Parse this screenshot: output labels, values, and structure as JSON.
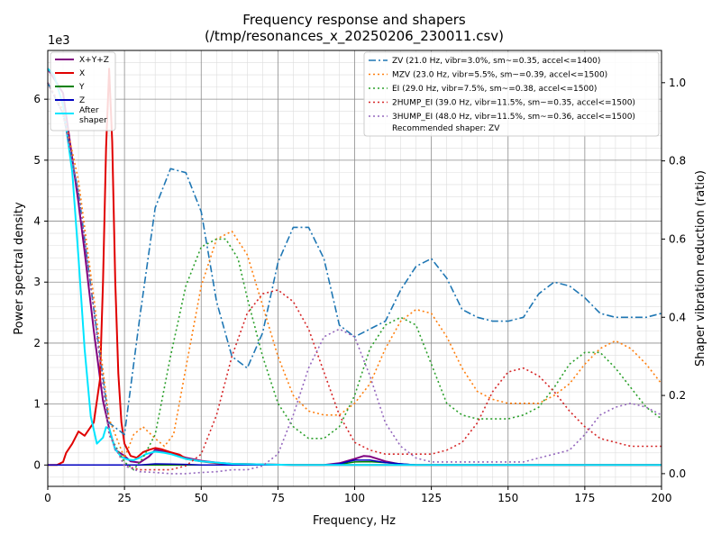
{
  "chart_data": {
    "type": "line",
    "title": "Frequency response and shapers",
    "subtitle": "(/tmp/resonances_x_20250206_230011.csv)",
    "xlabel": "Frequency, Hz",
    "ylabel": "Power spectral density",
    "y2label": "Shaper vibration reduction (ratio)",
    "y_multiplier_label": "1e3",
    "xlim": [
      0,
      200
    ],
    "ylim": [
      -350,
      6800
    ],
    "y2lim": [
      -0.0325,
      1.0825
    ],
    "x_ticks": [
      0,
      25,
      50,
      75,
      100,
      125,
      150,
      175,
      200
    ],
    "y_ticks": [
      0,
      1000,
      2000,
      3000,
      4000,
      5000,
      6000
    ],
    "y_tick_labels": [
      "0",
      "1",
      "2",
      "3",
      "4",
      "5",
      "6"
    ],
    "y2_ticks": [
      0.0,
      0.2,
      0.4,
      0.6,
      0.8,
      1.0
    ],
    "y2_tick_labels": [
      "0.0",
      "0.2",
      "0.4",
      "0.6",
      "0.8",
      "1.0"
    ],
    "grid": true,
    "recommended_text": "Recommended shaper: ZV",
    "legend_left": {
      "placement": "top-left",
      "entries": [
        "X+Y+Z",
        "X",
        "Y",
        "Z",
        "After shaper"
      ]
    },
    "legend_right": {
      "placement": "top-right",
      "entries": [
        "ZV (21.0 Hz, vibr=3.0%, sm~=0.35, accel<=1400)",
        "MZV (23.0 Hz, vibr=5.5%, sm~=0.39, accel<=1500)",
        "EI (29.0 Hz, vibr=7.5%, sm~=0.38, accel<=1500)",
        "2HUMP_EI (39.0 Hz, vibr=11.5%, sm~=0.35, accel<=1500)",
        "3HUMP_EI (48.0 Hz, vibr=11.5%, sm~=0.36, accel<=1500)"
      ]
    },
    "psd_series": [
      {
        "name": "X+Y+Z",
        "color": "#800080",
        "style": "solid",
        "x": [
          0,
          5,
          10,
          12,
          15,
          18,
          20,
          22,
          25,
          27,
          30,
          33,
          35,
          40,
          45,
          50,
          55,
          60,
          70,
          80,
          90,
          95,
          100,
          103,
          105,
          110,
          115,
          120,
          130,
          150,
          200
        ],
        "y": [
          6500,
          6100,
          4300,
          3500,
          2200,
          1050,
          600,
          250,
          150,
          60,
          40,
          140,
          250,
          200,
          120,
          70,
          40,
          20,
          10,
          0,
          0,
          30,
          100,
          150,
          140,
          60,
          10,
          0,
          0,
          0,
          0
        ]
      },
      {
        "name": "X",
        "color": "#e00000",
        "style": "solid",
        "x": [
          0,
          3,
          5,
          6,
          8,
          10,
          12,
          15,
          17,
          18,
          19,
          20,
          21,
          22,
          23,
          24,
          25,
          27,
          29,
          31,
          33,
          35,
          37,
          40,
          43,
          45,
          50,
          55,
          60,
          70,
          80,
          90,
          100,
          110,
          120,
          150,
          200
        ],
        "y": [
          0,
          0,
          50,
          200,
          350,
          550,
          480,
          700,
          1400,
          3000,
          5200,
          6500,
          5300,
          3000,
          1500,
          700,
          350,
          150,
          120,
          210,
          250,
          280,
          260,
          210,
          170,
          100,
          60,
          30,
          20,
          10,
          0,
          0,
          0,
          0,
          0,
          0,
          0
        ]
      },
      {
        "name": "Y",
        "color": "#008000",
        "style": "solid",
        "x": [
          0,
          20,
          40,
          90,
          95,
          100,
          105,
          110,
          115,
          120,
          200
        ],
        "y": [
          0,
          0,
          0,
          0,
          10,
          50,
          55,
          40,
          20,
          0,
          0
        ]
      },
      {
        "name": "Z",
        "color": "#0000c0",
        "style": "solid",
        "x": [
          0,
          30,
          35,
          40,
          45,
          50,
          90,
          95,
          100,
          105,
          110,
          120,
          200
        ],
        "y": [
          0,
          0,
          20,
          15,
          10,
          0,
          0,
          20,
          80,
          80,
          40,
          0,
          0
        ]
      },
      {
        "name": "After shaper",
        "color": "#00e5ff",
        "style": "solid",
        "x": [
          0,
          2,
          5,
          8,
          10,
          12,
          14,
          16,
          18,
          19,
          20,
          21,
          22,
          24,
          26,
          28,
          30,
          32,
          35,
          38,
          40,
          42,
          45,
          50,
          55,
          60,
          70,
          80,
          90,
          100,
          200
        ],
        "y": [
          6500,
          6400,
          5900,
          4800,
          3400,
          1900,
          800,
          350,
          450,
          620,
          600,
          420,
          260,
          130,
          90,
          80,
          120,
          180,
          220,
          200,
          180,
          150,
          100,
          60,
          40,
          20,
          10,
          0,
          0,
          0,
          0
        ]
      }
    ],
    "shaper_series": [
      {
        "name": "ZV",
        "color": "#1f77b4",
        "style": "dashdot",
        "x": [
          0,
          5,
          10,
          15,
          20,
          25,
          30,
          35,
          40,
          45,
          50,
          55,
          60,
          65,
          70,
          75,
          80,
          85,
          90,
          95,
          100,
          105,
          110,
          115,
          120,
          125,
          130,
          135,
          140,
          145,
          150,
          155,
          160,
          165,
          170,
          175,
          180,
          185,
          190,
          195,
          200
        ],
        "y": [
          1.0,
          0.92,
          0.72,
          0.42,
          0.13,
          0.1,
          0.4,
          0.68,
          0.78,
          0.77,
          0.67,
          0.44,
          0.3,
          0.27,
          0.36,
          0.54,
          0.63,
          0.63,
          0.55,
          0.38,
          0.35,
          0.37,
          0.39,
          0.47,
          0.53,
          0.55,
          0.5,
          0.42,
          0.4,
          0.39,
          0.39,
          0.4,
          0.46,
          0.49,
          0.48,
          0.45,
          0.41,
          0.4,
          0.4,
          0.4,
          0.41
        ]
      },
      {
        "name": "MZV",
        "color": "#ff7f0e",
        "style": "dotted",
        "x": [
          0,
          5,
          10,
          15,
          20,
          25,
          28,
          31,
          35,
          38,
          41,
          45,
          50,
          55,
          60,
          65,
          70,
          75,
          80,
          85,
          90,
          95,
          100,
          105,
          110,
          115,
          120,
          125,
          130,
          135,
          140,
          145,
          150,
          155,
          160,
          165,
          170,
          175,
          180,
          185,
          190,
          195,
          200
        ],
        "y": [
          1.0,
          0.93,
          0.75,
          0.45,
          0.14,
          0.04,
          0.1,
          0.12,
          0.09,
          0.07,
          0.1,
          0.27,
          0.48,
          0.6,
          0.62,
          0.56,
          0.43,
          0.3,
          0.2,
          0.16,
          0.15,
          0.15,
          0.18,
          0.23,
          0.32,
          0.39,
          0.42,
          0.41,
          0.35,
          0.27,
          0.21,
          0.19,
          0.18,
          0.18,
          0.18,
          0.2,
          0.23,
          0.28,
          0.32,
          0.34,
          0.32,
          0.28,
          0.23
        ]
      },
      {
        "name": "EI",
        "color": "#2ca02c",
        "style": "dotted",
        "x": [
          0,
          5,
          10,
          15,
          20,
          25,
          28,
          31,
          35,
          40,
          45,
          50,
          55,
          58,
          62,
          65,
          70,
          75,
          80,
          85,
          90,
          95,
          100,
          105,
          110,
          115,
          120,
          125,
          130,
          135,
          140,
          145,
          150,
          155,
          160,
          165,
          170,
          175,
          180,
          185,
          190,
          195,
          200
        ],
        "y": [
          1.0,
          0.92,
          0.72,
          0.42,
          0.1,
          0.03,
          0.01,
          0.04,
          0.1,
          0.3,
          0.48,
          0.58,
          0.6,
          0.6,
          0.55,
          0.45,
          0.3,
          0.18,
          0.12,
          0.09,
          0.09,
          0.12,
          0.2,
          0.32,
          0.38,
          0.4,
          0.38,
          0.28,
          0.18,
          0.15,
          0.14,
          0.14,
          0.14,
          0.15,
          0.17,
          0.22,
          0.28,
          0.31,
          0.31,
          0.27,
          0.22,
          0.17,
          0.14
        ]
      },
      {
        "name": "2HUMP_EI",
        "color": "#d62728",
        "style": "dotted",
        "x": [
          0,
          5,
          10,
          15,
          20,
          25,
          30,
          35,
          40,
          45,
          50,
          55,
          60,
          65,
          70,
          75,
          80,
          85,
          90,
          95,
          100,
          105,
          110,
          115,
          120,
          125,
          130,
          135,
          140,
          145,
          150,
          155,
          160,
          165,
          170,
          175,
          180,
          185,
          190,
          195,
          200
        ],
        "y": [
          1.0,
          0.92,
          0.72,
          0.42,
          0.1,
          0.02,
          0.01,
          0.01,
          0.01,
          0.02,
          0.05,
          0.15,
          0.3,
          0.41,
          0.46,
          0.47,
          0.44,
          0.37,
          0.26,
          0.15,
          0.08,
          0.06,
          0.05,
          0.05,
          0.05,
          0.05,
          0.06,
          0.08,
          0.13,
          0.21,
          0.26,
          0.27,
          0.25,
          0.21,
          0.16,
          0.12,
          0.09,
          0.08,
          0.07,
          0.07,
          0.07
        ]
      },
      {
        "name": "3HUMP_EI",
        "color": "#9467bd",
        "style": "dotted",
        "x": [
          0,
          5,
          10,
          15,
          20,
          25,
          30,
          35,
          40,
          45,
          50,
          55,
          60,
          65,
          70,
          75,
          80,
          85,
          90,
          95,
          100,
          105,
          110,
          115,
          120,
          125,
          130,
          135,
          140,
          145,
          150,
          155,
          160,
          165,
          170,
          175,
          180,
          185,
          190,
          195,
          200
        ],
        "y": [
          1.0,
          0.92,
          0.72,
          0.42,
          0.1,
          0.02,
          0.005,
          0.003,
          0.0,
          0.0,
          0.003,
          0.005,
          0.01,
          0.01,
          0.02,
          0.05,
          0.15,
          0.27,
          0.35,
          0.37,
          0.35,
          0.25,
          0.13,
          0.07,
          0.04,
          0.03,
          0.03,
          0.03,
          0.03,
          0.03,
          0.03,
          0.03,
          0.04,
          0.05,
          0.06,
          0.1,
          0.15,
          0.17,
          0.18,
          0.17,
          0.15
        ]
      }
    ]
  }
}
